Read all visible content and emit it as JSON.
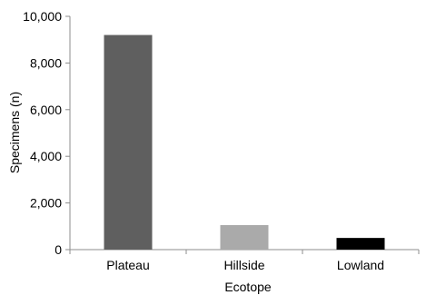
{
  "chart_data": {
    "type": "bar",
    "categories": [
      "Plateau",
      "Hillside",
      "Lowland"
    ],
    "values": [
      9200,
      1050,
      500
    ],
    "bar_colors": [
      "#5f5f5f",
      "#aaaaaa",
      "#000000"
    ],
    "xlabel": "Ecotope",
    "ylabel": "Specimens (n)",
    "ylim": [
      0,
      10000
    ],
    "yticks": [
      0,
      2000,
      4000,
      6000,
      8000,
      10000
    ],
    "ytick_labels": [
      "0",
      "2,000",
      "4,000",
      "6,000",
      "8,000",
      "10,000"
    ],
    "grid": false,
    "legend": "none"
  }
}
